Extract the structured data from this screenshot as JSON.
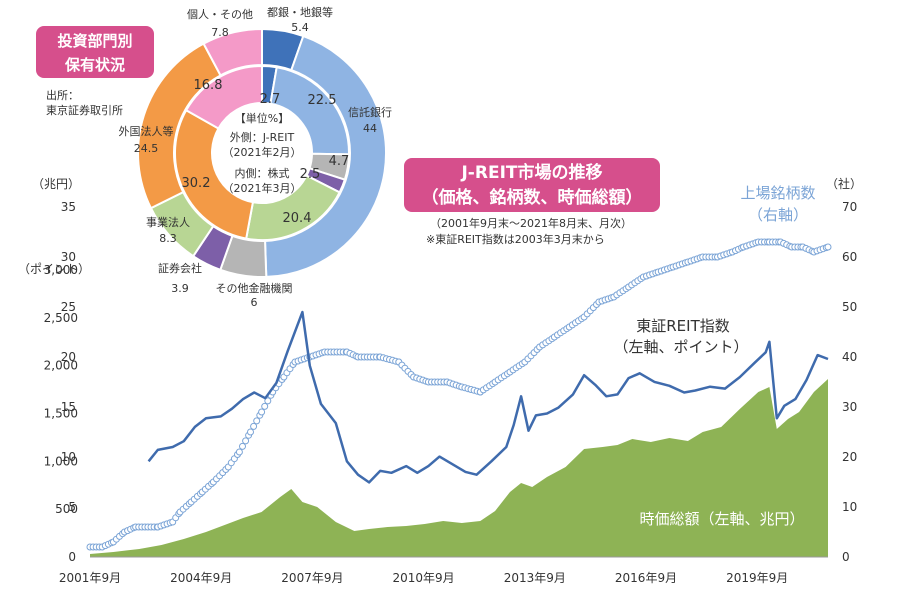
{
  "badges": {
    "holding_line1": "投資部門別",
    "holding_line2": "保有状況",
    "market_line1": "J-REIT市場の推移",
    "market_line2": "（価格、銘柄数、時価総額）"
  },
  "source": {
    "line1": "出所：",
    "line2": "東京証券取引所"
  },
  "notes": {
    "period": "（2001年9月末～2021年8月末、月次）",
    "index_start": "※東証REIT指数は2003年3月末から"
  },
  "donut": {
    "center_unit": "【単位%】",
    "center_outer_1": "外側：J-REIT",
    "center_outer_2": "（2021年2月）",
    "center_inner_1": "内側：株式",
    "center_inner_2": "（2021年3月）",
    "categories": [
      {
        "name": "都銀・地銀等",
        "outer": 5.4,
        "inner": 2.7,
        "color": "#3f72b9"
      },
      {
        "name": "信託銀行",
        "outer": 44.0,
        "inner": 22.5,
        "color": "#8fb4e3"
      },
      {
        "name": "その他金融機関",
        "outer": 6.0,
        "inner": 4.7,
        "color": "#b5b5b5"
      },
      {
        "name": "証券会社",
        "outer": 3.9,
        "inner": 2.5,
        "color": "#7d5fa8"
      },
      {
        "name": "事業法人",
        "outer": 8.3,
        "inner": 20.4,
        "color": "#b8d694"
      },
      {
        "name": "外国法人等",
        "outer": 24.5,
        "inner": 30.2,
        "color": "#f39a46"
      },
      {
        "name": "個人・その他",
        "outer": 7.8,
        "inner": 16.8,
        "color": "#f49ac8"
      }
    ]
  },
  "chart_data": {
    "type": "line",
    "left_axis_trillion": {
      "unit": "（兆円）",
      "ticks": [
        "35",
        "30",
        "25",
        "20",
        "15",
        "10",
        "5",
        "0"
      ],
      "range": [
        0,
        35
      ]
    },
    "left_axis_points": {
      "unit": "（ポイント）",
      "ticks": [
        "3,000",
        "2,500",
        "2,000",
        "1,500",
        "1,000",
        "500"
      ],
      "range": [
        0,
        3000
      ]
    },
    "right_axis": {
      "unit": "（社）",
      "ticks": [
        "70",
        "60",
        "50",
        "40",
        "30",
        "20",
        "10",
        "0"
      ],
      "range": [
        0,
        70
      ]
    },
    "x_axis": {
      "ticks": [
        "2001年9月",
        "2004年9月",
        "2007年9月",
        "2010年9月",
        "2013年9月",
        "2016年9月",
        "2019年9月"
      ],
      "range": [
        2001.67,
        2021.58
      ]
    },
    "series": [
      {
        "name": "上場銘柄数",
        "axis_label": "（右軸）",
        "color": "#7ba4d6",
        "points": [
          [
            2001.67,
            2
          ],
          [
            2002.0,
            2
          ],
          [
            2002.3,
            3
          ],
          [
            2002.6,
            5
          ],
          [
            2002.9,
            6
          ],
          [
            2003.5,
            6
          ],
          [
            2003.9,
            7
          ],
          [
            2004.1,
            9
          ],
          [
            2004.4,
            11
          ],
          [
            2004.7,
            13
          ],
          [
            2005.0,
            15
          ],
          [
            2005.4,
            18
          ],
          [
            2005.7,
            21
          ],
          [
            2006.0,
            25
          ],
          [
            2006.3,
            29
          ],
          [
            2006.6,
            33
          ],
          [
            2006.9,
            36
          ],
          [
            2007.2,
            39
          ],
          [
            2007.6,
            40
          ],
          [
            2008.0,
            41
          ],
          [
            2008.6,
            41
          ],
          [
            2008.9,
            40
          ],
          [
            2009.5,
            40
          ],
          [
            2010.0,
            39
          ],
          [
            2010.4,
            36
          ],
          [
            2010.8,
            35
          ],
          [
            2011.3,
            35
          ],
          [
            2011.7,
            34
          ],
          [
            2012.2,
            33
          ],
          [
            2012.6,
            35
          ],
          [
            2013.0,
            37
          ],
          [
            2013.4,
            39
          ],
          [
            2013.8,
            42
          ],
          [
            2014.2,
            44
          ],
          [
            2014.6,
            46
          ],
          [
            2015.0,
            48
          ],
          [
            2015.4,
            51
          ],
          [
            2015.8,
            52
          ],
          [
            2016.2,
            54
          ],
          [
            2016.6,
            56
          ],
          [
            2017.0,
            57
          ],
          [
            2017.4,
            58
          ],
          [
            2017.8,
            59
          ],
          [
            2018.2,
            60
          ],
          [
            2018.6,
            60
          ],
          [
            2019.0,
            61
          ],
          [
            2019.3,
            62
          ],
          [
            2019.7,
            63
          ],
          [
            2020.0,
            63
          ],
          [
            2020.3,
            63
          ],
          [
            2020.6,
            62
          ],
          [
            2020.9,
            62
          ],
          [
            2021.2,
            61
          ],
          [
            2021.58,
            62
          ]
        ]
      },
      {
        "name": "東証REIT指数",
        "axis_label": "（左軸、ポイント）",
        "color": "#3f6bad",
        "points": [
          [
            2003.25,
            1000
          ],
          [
            2003.5,
            1120
          ],
          [
            2003.9,
            1150
          ],
          [
            2004.2,
            1210
          ],
          [
            2004.5,
            1360
          ],
          [
            2004.8,
            1450
          ],
          [
            2005.2,
            1470
          ],
          [
            2005.5,
            1550
          ],
          [
            2005.8,
            1650
          ],
          [
            2006.1,
            1720
          ],
          [
            2006.4,
            1660
          ],
          [
            2006.7,
            1820
          ],
          [
            2007.0,
            2150
          ],
          [
            2007.4,
            2560
          ],
          [
            2007.6,
            2000
          ],
          [
            2007.9,
            1600
          ],
          [
            2008.3,
            1400
          ],
          [
            2008.6,
            1000
          ],
          [
            2008.9,
            860
          ],
          [
            2009.2,
            780
          ],
          [
            2009.5,
            900
          ],
          [
            2009.8,
            880
          ],
          [
            2010.2,
            950
          ],
          [
            2010.5,
            880
          ],
          [
            2010.8,
            950
          ],
          [
            2011.1,
            1050
          ],
          [
            2011.4,
            980
          ],
          [
            2011.8,
            890
          ],
          [
            2012.1,
            860
          ],
          [
            2012.5,
            1000
          ],
          [
            2012.9,
            1150
          ],
          [
            2013.1,
            1380
          ],
          [
            2013.3,
            1680
          ],
          [
            2013.5,
            1320
          ],
          [
            2013.7,
            1480
          ],
          [
            2014.0,
            1500
          ],
          [
            2014.3,
            1560
          ],
          [
            2014.7,
            1700
          ],
          [
            2015.0,
            1900
          ],
          [
            2015.3,
            1800
          ],
          [
            2015.6,
            1680
          ],
          [
            2015.9,
            1700
          ],
          [
            2016.2,
            1870
          ],
          [
            2016.5,
            1920
          ],
          [
            2016.9,
            1830
          ],
          [
            2017.3,
            1790
          ],
          [
            2017.7,
            1720
          ],
          [
            2018.0,
            1740
          ],
          [
            2018.4,
            1780
          ],
          [
            2018.8,
            1760
          ],
          [
            2019.2,
            1880
          ],
          [
            2019.6,
            2030
          ],
          [
            2019.9,
            2140
          ],
          [
            2020.0,
            2250
          ],
          [
            2020.2,
            1450
          ],
          [
            2020.4,
            1580
          ],
          [
            2020.7,
            1650
          ],
          [
            2021.0,
            1850
          ],
          [
            2021.3,
            2110
          ],
          [
            2021.58,
            2070
          ]
        ]
      },
      {
        "name": "時価総額",
        "axis_label": "（左軸、兆円）",
        "color": "#8eb355",
        "points": [
          [
            2001.67,
            0.3
          ],
          [
            2002.3,
            0.5
          ],
          [
            2003.0,
            0.8
          ],
          [
            2003.6,
            1.2
          ],
          [
            2004.2,
            1.8
          ],
          [
            2004.8,
            2.5
          ],
          [
            2005.3,
            3.2
          ],
          [
            2005.8,
            3.9
          ],
          [
            2006.3,
            4.5
          ],
          [
            2006.8,
            6.0
          ],
          [
            2007.1,
            6.8
          ],
          [
            2007.4,
            5.5
          ],
          [
            2007.8,
            5.0
          ],
          [
            2008.3,
            3.5
          ],
          [
            2008.8,
            2.6
          ],
          [
            2009.2,
            2.8
          ],
          [
            2009.7,
            3.0
          ],
          [
            2010.2,
            3.1
          ],
          [
            2010.7,
            3.3
          ],
          [
            2011.2,
            3.6
          ],
          [
            2011.7,
            3.4
          ],
          [
            2012.2,
            3.6
          ],
          [
            2012.6,
            4.6
          ],
          [
            2013.0,
            6.5
          ],
          [
            2013.3,
            7.4
          ],
          [
            2013.6,
            7.0
          ],
          [
            2014.0,
            8.0
          ],
          [
            2014.5,
            9.0
          ],
          [
            2015.0,
            10.8
          ],
          [
            2015.5,
            11.0
          ],
          [
            2015.9,
            11.2
          ],
          [
            2016.3,
            11.8
          ],
          [
            2016.8,
            11.5
          ],
          [
            2017.3,
            11.9
          ],
          [
            2017.8,
            11.6
          ],
          [
            2018.2,
            12.5
          ],
          [
            2018.7,
            13.0
          ],
          [
            2019.2,
            14.8
          ],
          [
            2019.7,
            16.5
          ],
          [
            2020.0,
            17.0
          ],
          [
            2020.2,
            12.8
          ],
          [
            2020.5,
            13.8
          ],
          [
            2020.8,
            14.5
          ],
          [
            2021.2,
            16.5
          ],
          [
            2021.58,
            17.8
          ]
        ]
      }
    ]
  }
}
